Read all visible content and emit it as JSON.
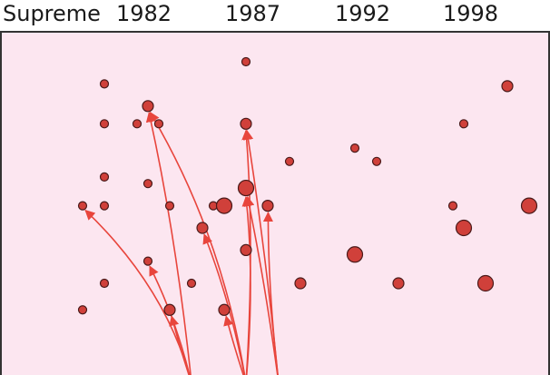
{
  "header": {
    "label": "Supreme",
    "years": [
      "1982",
      "1987",
      "1992",
      "1998"
    ]
  },
  "colors": {
    "background": "#fce6f0",
    "frame": "#333333",
    "node_fill": "#d0403a",
    "node_stroke": "#4a1a1a",
    "edge": "#e8453c"
  },
  "chart_data": {
    "type": "scatter",
    "title": "",
    "x_ticks": [
      "1982",
      "1987",
      "1992",
      "1998"
    ],
    "points": [
      {
        "x": 1980.5,
        "row": 1.0,
        "size": "small"
      },
      {
        "x": 1987.0,
        "row": 0.0,
        "size": "small"
      },
      {
        "x": 1982.5,
        "row": 2.0,
        "size": "medium"
      },
      {
        "x": 1980.5,
        "row": 2.8,
        "size": "small"
      },
      {
        "x": 1982.0,
        "row": 2.8,
        "size": "small"
      },
      {
        "x": 1983.0,
        "row": 2.8,
        "size": "small"
      },
      {
        "x": 1987.0,
        "row": 2.8,
        "size": "medium"
      },
      {
        "x": 1999.0,
        "row": 1.1,
        "size": "medium"
      },
      {
        "x": 1997.0,
        "row": 2.8,
        "size": "small"
      },
      {
        "x": 1992.0,
        "row": 3.9,
        "size": "small"
      },
      {
        "x": 1993.0,
        "row": 4.5,
        "size": "small"
      },
      {
        "x": 1989.0,
        "row": 4.5,
        "size": "small"
      },
      {
        "x": 1980.5,
        "row": 5.2,
        "size": "small"
      },
      {
        "x": 1982.5,
        "row": 5.5,
        "size": "small"
      },
      {
        "x": 1987.0,
        "row": 5.7,
        "size": "large"
      },
      {
        "x": 1979.5,
        "row": 6.5,
        "size": "small"
      },
      {
        "x": 1980.5,
        "row": 6.5,
        "size": "small"
      },
      {
        "x": 1983.5,
        "row": 6.5,
        "size": "small"
      },
      {
        "x": 1985.5,
        "row": 6.5,
        "size": "small"
      },
      {
        "x": 1986.0,
        "row": 6.5,
        "size": "large"
      },
      {
        "x": 1988.0,
        "row": 6.5,
        "size": "medium"
      },
      {
        "x": 1996.5,
        "row": 6.5,
        "size": "small"
      },
      {
        "x": 2000.0,
        "row": 6.5,
        "size": "large"
      },
      {
        "x": 1997.0,
        "row": 7.5,
        "size": "large"
      },
      {
        "x": 1985.0,
        "row": 7.5,
        "size": "medium"
      },
      {
        "x": 1987.0,
        "row": 8.5,
        "size": "medium"
      },
      {
        "x": 1992.0,
        "row": 8.7,
        "size": "large"
      },
      {
        "x": 1982.5,
        "row": 9.0,
        "size": "small"
      },
      {
        "x": 1980.5,
        "row": 10.0,
        "size": "small"
      },
      {
        "x": 1984.5,
        "row": 10.0,
        "size": "small"
      },
      {
        "x": 1989.5,
        "row": 10.0,
        "size": "medium"
      },
      {
        "x": 1994.0,
        "row": 10.0,
        "size": "medium"
      },
      {
        "x": 1998.0,
        "row": 10.0,
        "size": "large"
      },
      {
        "x": 1979.5,
        "row": 11.2,
        "size": "small"
      },
      {
        "x": 1983.5,
        "row": 11.2,
        "size": "medium"
      },
      {
        "x": 1986.0,
        "row": 11.2,
        "size": "medium"
      }
    ],
    "edges": [
      {
        "from": {
          "x": 1984.5,
          "row": 14.5
        },
        "to": 2
      },
      {
        "from": {
          "x": 1984.5,
          "row": 14.5
        },
        "to": 15
      },
      {
        "from": {
          "x": 1984.5,
          "row": 14.5
        },
        "to": 27
      },
      {
        "from": {
          "x": 1984.5,
          "row": 14.5
        },
        "to": 34
      },
      {
        "from": {
          "x": 1987.0,
          "row": 14.5
        },
        "to": 2
      },
      {
        "from": {
          "x": 1987.0,
          "row": 14.5
        },
        "to": 6
      },
      {
        "from": {
          "x": 1987.0,
          "row": 14.5
        },
        "to": 24
      },
      {
        "from": {
          "x": 1987.0,
          "row": 14.5
        },
        "to": 14
      },
      {
        "from": {
          "x": 1987.0,
          "row": 14.5
        },
        "to": 35
      },
      {
        "from": {
          "x": 1988.5,
          "row": 14.5
        },
        "to": 20
      },
      {
        "from": {
          "x": 1988.5,
          "row": 14.5
        },
        "to": 14
      },
      {
        "from": {
          "x": 1988.5,
          "row": 14.5
        },
        "to": 6
      }
    ]
  }
}
